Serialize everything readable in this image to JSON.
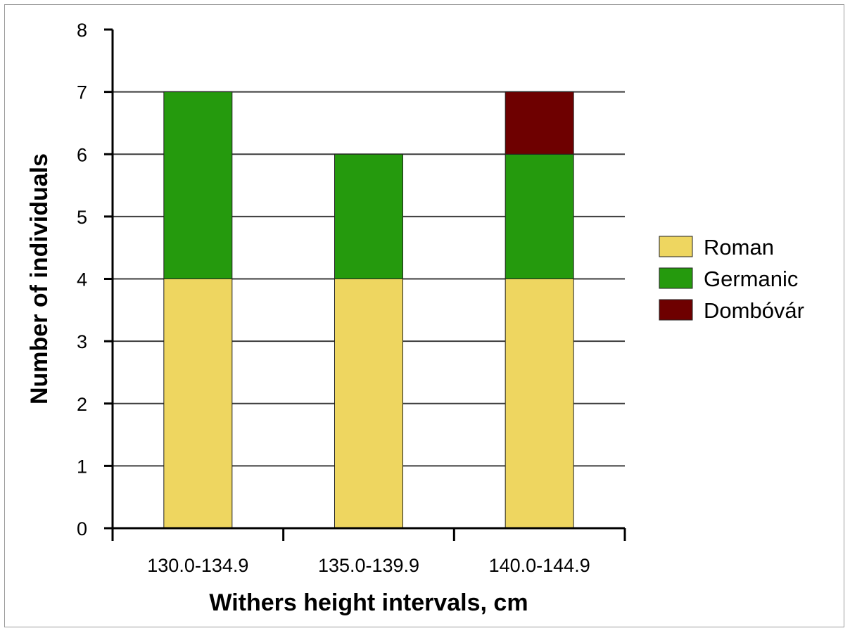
{
  "chart_data": {
    "type": "bar",
    "stacked": true,
    "categories": [
      "130.0-134.9",
      "135.0-139.9",
      "140.0-144.9"
    ],
    "series": [
      {
        "name": "Roman",
        "values": [
          4,
          4,
          4
        ],
        "color": "#EED660"
      },
      {
        "name": "Germanic",
        "values": [
          3,
          2,
          2
        ],
        "color": "#259A0D"
      },
      {
        "name": "Dombóvár",
        "values": [
          0,
          0,
          1
        ],
        "color": "#6E0000"
      }
    ],
    "title": "",
    "xlabel": "Withers height intervals, cm",
    "ylabel": "Number of individuals",
    "ylim": [
      0,
      8
    ],
    "yticks": [
      "0",
      "1",
      "2",
      "3",
      "4",
      "5",
      "6",
      "7",
      "8"
    ],
    "grid": true,
    "legend_position": "right"
  }
}
